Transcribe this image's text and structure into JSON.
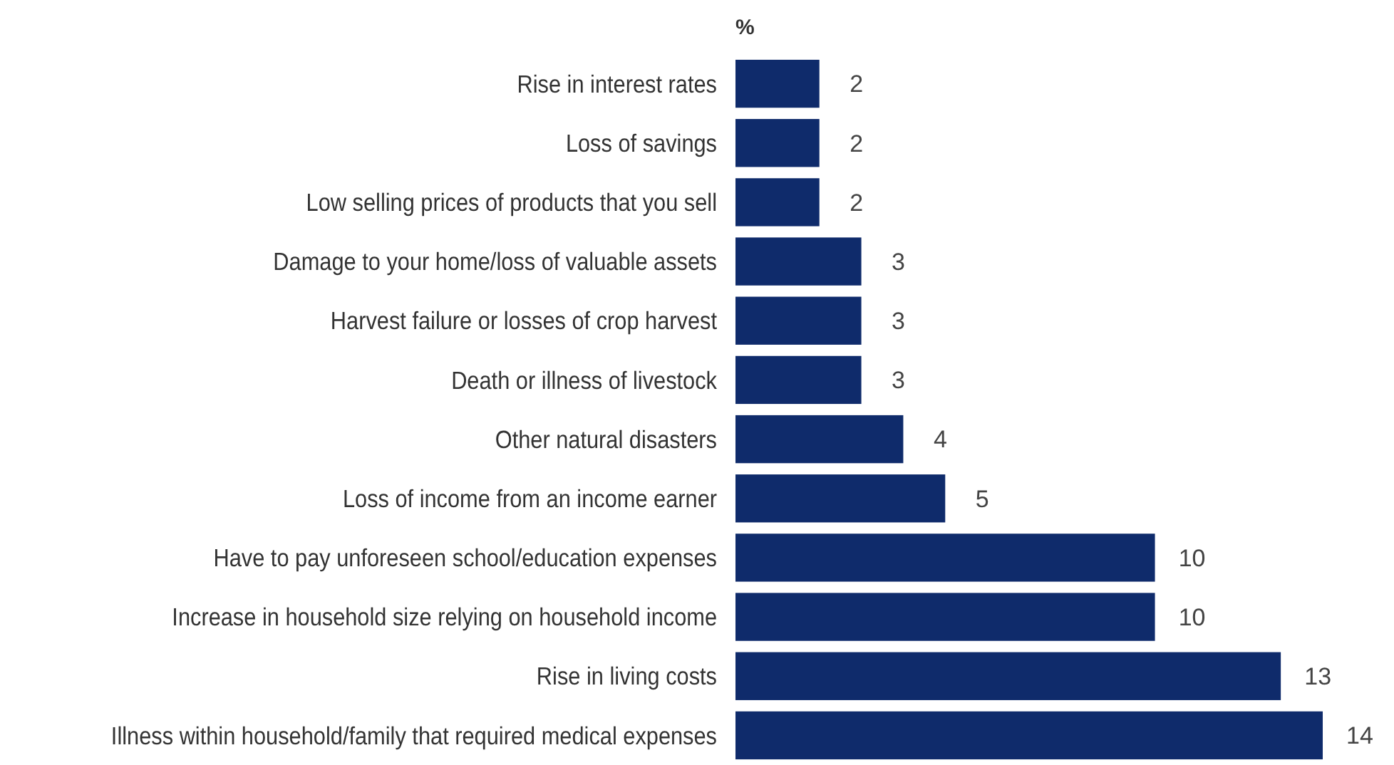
{
  "chart_data": {
    "type": "bar",
    "orientation": "horizontal",
    "xlabel": "%",
    "categories": [
      "Rise in interest rates",
      "Loss of savings",
      "Low selling prices of products that you sell",
      "Damage to your home/loss of valuable assets",
      "Harvest failure or losses of crop harvest",
      "Death or illness of livestock",
      "Other natural disasters",
      "Loss of income from an income earner",
      "Have to pay unforeseen school/education expenses",
      "Increase in household size relying on household income",
      "Rise in living costs",
      "Illness within household/family that required medical expenses"
    ],
    "values": [
      2,
      2,
      2,
      3,
      3,
      3,
      4,
      5,
      10,
      10,
      13,
      14
    ],
    "color": "#0f2b6b",
    "data_labels": true
  }
}
